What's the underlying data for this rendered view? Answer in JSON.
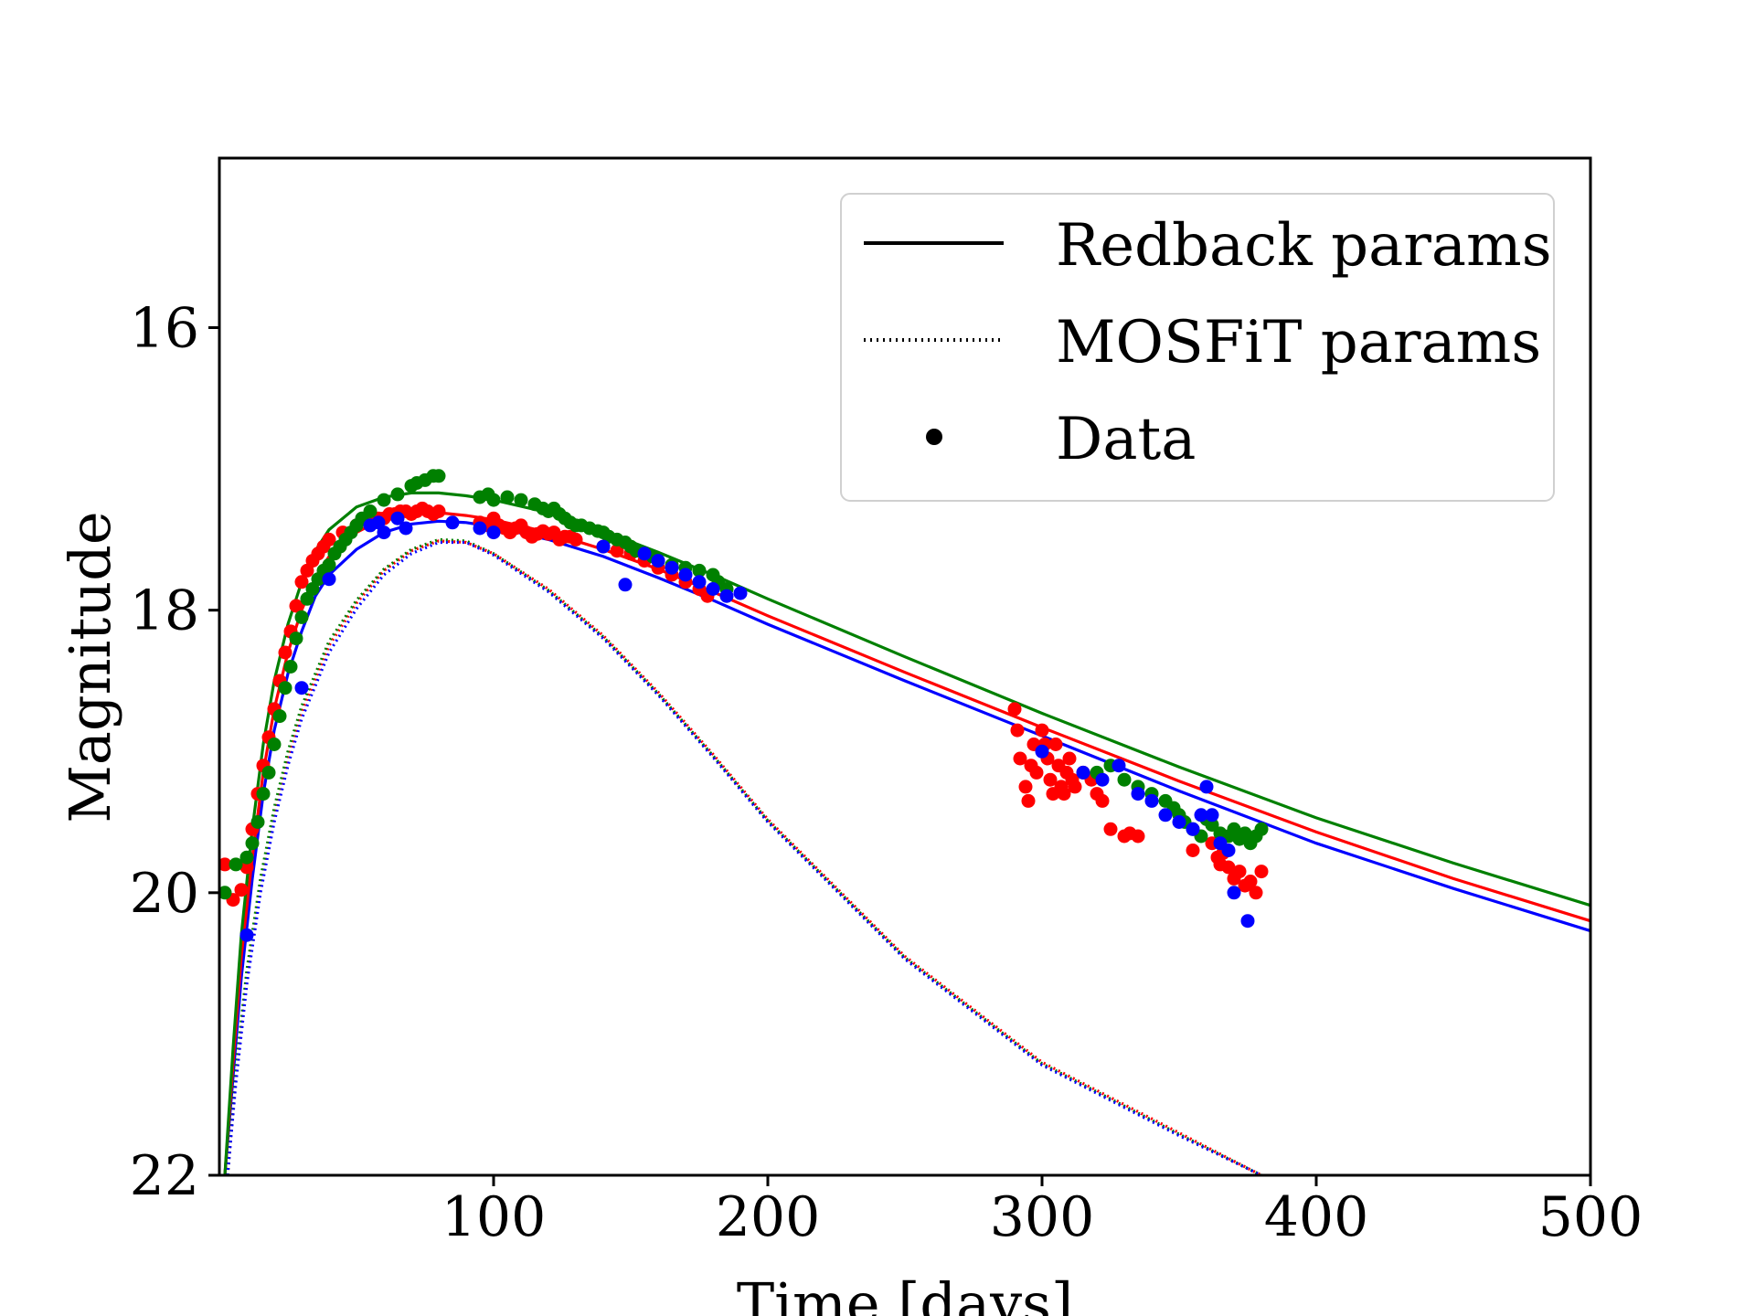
{
  "chart_data": {
    "type": "line",
    "title": "",
    "xlabel": "Time [days]",
    "ylabel": "Magnitude",
    "xlim": [
      0,
      500
    ],
    "ylim": [
      22,
      14.8
    ],
    "y_inverted": true,
    "grid": false,
    "legend_placement": "top-right",
    "xticks": [
      {
        "value": 100,
        "label": "100"
      },
      {
        "value": 200,
        "label": "200"
      },
      {
        "value": 300,
        "label": "300"
      },
      {
        "value": 400,
        "label": "400"
      },
      {
        "value": 500,
        "label": "500"
      }
    ],
    "yticks": [
      {
        "value": 16,
        "label": "16"
      },
      {
        "value": 18,
        "label": "18"
      },
      {
        "value": 20,
        "label": "20"
      },
      {
        "value": 22,
        "label": "22"
      }
    ],
    "legend": [
      {
        "label": "Redback params",
        "style": "solid"
      },
      {
        "label": "MOSFiT params",
        "style": "dotted"
      },
      {
        "label": "Data",
        "style": "marker"
      }
    ],
    "model_series": [
      {
        "color": "#0000ff",
        "style": "solid",
        "x": [
          2,
          5,
          8,
          12,
          16,
          20,
          25,
          30,
          35,
          40,
          50,
          60,
          70,
          80,
          90,
          100,
          120,
          140,
          160,
          180,
          200,
          250,
          300,
          350,
          400,
          450,
          500
        ],
        "y": [
          22,
          21.3,
          20.6,
          19.9,
          19.3,
          18.85,
          18.45,
          18.15,
          17.9,
          17.75,
          17.57,
          17.45,
          17.39,
          17.37,
          17.38,
          17.41,
          17.5,
          17.62,
          17.77,
          17.93,
          18.1,
          18.5,
          18.89,
          19.28,
          19.65,
          19.97,
          20.27
        ]
      },
      {
        "color": "#ff0000",
        "style": "solid",
        "x": [
          2,
          5,
          8,
          12,
          16,
          20,
          25,
          30,
          35,
          40,
          50,
          60,
          70,
          80,
          90,
          100,
          120,
          140,
          160,
          180,
          200,
          250,
          300,
          350,
          400,
          450,
          500
        ],
        "y": [
          22,
          21.2,
          20.45,
          19.75,
          19.15,
          18.7,
          18.3,
          18.0,
          17.77,
          17.62,
          17.45,
          17.35,
          17.31,
          17.31,
          17.33,
          17.36,
          17.45,
          17.57,
          17.71,
          17.87,
          18.04,
          18.44,
          18.83,
          19.21,
          19.57,
          19.9,
          20.2
        ]
      },
      {
        "color": "#008000",
        "style": "solid",
        "x": [
          2,
          5,
          8,
          12,
          16,
          20,
          25,
          30,
          35,
          40,
          50,
          60,
          70,
          80,
          90,
          100,
          120,
          140,
          160,
          180,
          200,
          250,
          300,
          350,
          400,
          450,
          500
        ],
        "y": [
          22,
          21.1,
          20.3,
          19.55,
          18.95,
          18.5,
          18.1,
          17.8,
          17.58,
          17.43,
          17.27,
          17.2,
          17.17,
          17.17,
          17.19,
          17.22,
          17.31,
          17.44,
          17.59,
          17.75,
          17.92,
          18.33,
          18.73,
          19.11,
          19.47,
          19.79,
          20.09
        ]
      },
      {
        "color": "#ff0000",
        "style": "dotted",
        "x": [
          3,
          6,
          10,
          15,
          20,
          25,
          30,
          40,
          50,
          60,
          70,
          80,
          90,
          100,
          120,
          140,
          160,
          180,
          200,
          250,
          300,
          350,
          380
        ],
        "y": [
          22,
          21.3,
          20.6,
          19.95,
          19.45,
          19.05,
          18.72,
          18.25,
          17.95,
          17.72,
          17.58,
          17.51,
          17.52,
          17.6,
          17.85,
          18.18,
          18.58,
          19.02,
          19.48,
          20.45,
          21.2,
          21.7,
          22.0
        ]
      },
      {
        "color": "#008000",
        "style": "dotted",
        "x": [
          3,
          6,
          10,
          15,
          20,
          25,
          30,
          40,
          50,
          60,
          70,
          80,
          90,
          100,
          120,
          140,
          160,
          180,
          200,
          250,
          300,
          350,
          380
        ],
        "y": [
          22,
          21.25,
          20.55,
          19.9,
          19.4,
          19.0,
          18.68,
          18.22,
          17.93,
          17.71,
          17.57,
          17.5,
          17.51,
          17.6,
          17.86,
          18.19,
          18.59,
          19.03,
          19.49,
          20.46,
          21.21,
          21.71,
          22.0
        ]
      },
      {
        "color": "#0000ff",
        "style": "dotted",
        "x": [
          3,
          6,
          10,
          15,
          20,
          25,
          30,
          40,
          50,
          60,
          70,
          80,
          90,
          100,
          120,
          140,
          160,
          180,
          200,
          250,
          300,
          350,
          380
        ],
        "y": [
          22,
          21.35,
          20.65,
          20.0,
          19.5,
          19.1,
          18.77,
          18.3,
          17.99,
          17.75,
          17.6,
          17.52,
          17.52,
          17.61,
          17.87,
          18.2,
          18.6,
          19.04,
          19.5,
          20.47,
          21.22,
          21.72,
          22.0
        ]
      }
    ],
    "data_points": [
      {
        "name": "red",
        "color": "#ff0000",
        "x": [
          2,
          5,
          8,
          10,
          12,
          14,
          16,
          18,
          20,
          22,
          24,
          26,
          28,
          30,
          32,
          34,
          36,
          38,
          40,
          45,
          50,
          55,
          58,
          60,
          62,
          64,
          66,
          68,
          70,
          72,
          74,
          76,
          78,
          80,
          95,
          98,
          100,
          102,
          104,
          106,
          108,
          110,
          112,
          114,
          116,
          118,
          120,
          122,
          124,
          126,
          128,
          130,
          140,
          145,
          150,
          155,
          160,
          165,
          170,
          175,
          178,
          290,
          291,
          292,
          294,
          295,
          296,
          297,
          298,
          300,
          301,
          302,
          303,
          304,
          305,
          306,
          307,
          308,
          309,
          310,
          311,
          312,
          315,
          318,
          320,
          322,
          325,
          330,
          332,
          335,
          355,
          362,
          364,
          365,
          366,
          368,
          370,
          372,
          374,
          376,
          378,
          380
        ],
        "y": [
          19.8,
          20.05,
          19.98,
          19.82,
          19.55,
          19.3,
          19.1,
          18.9,
          18.7,
          18.5,
          18.3,
          18.15,
          17.97,
          17.8,
          17.72,
          17.65,
          17.6,
          17.55,
          17.5,
          17.45,
          17.4,
          17.38,
          17.35,
          17.35,
          17.32,
          17.32,
          17.3,
          17.3,
          17.32,
          17.3,
          17.28,
          17.3,
          17.32,
          17.3,
          17.38,
          17.4,
          17.35,
          17.4,
          17.42,
          17.45,
          17.42,
          17.4,
          17.45,
          17.48,
          17.46,
          17.44,
          17.46,
          17.45,
          17.5,
          17.48,
          17.48,
          17.5,
          17.55,
          17.58,
          17.6,
          17.65,
          17.7,
          17.75,
          17.8,
          17.85,
          17.9,
          18.7,
          18.85,
          19.05,
          19.25,
          19.35,
          19.1,
          18.95,
          19.15,
          18.85,
          18.95,
          19.05,
          19.2,
          19.3,
          18.95,
          19.1,
          19.25,
          19.3,
          19.15,
          19.05,
          19.2,
          19.25,
          19.15,
          19.2,
          19.3,
          19.35,
          19.55,
          19.6,
          19.58,
          19.6,
          19.7,
          19.65,
          19.75,
          19.8,
          19.72,
          19.82,
          19.9,
          19.85,
          19.95,
          19.92,
          20.0,
          19.85
        ]
      },
      {
        "name": "green",
        "color": "#008000",
        "x": [
          2,
          6,
          10,
          12,
          14,
          16,
          18,
          20,
          22,
          24,
          26,
          28,
          30,
          32,
          34,
          36,
          38,
          40,
          42,
          44,
          46,
          48,
          50,
          52,
          55,
          60,
          65,
          70,
          72,
          75,
          78,
          80,
          95,
          98,
          100,
          105,
          110,
          115,
          118,
          120,
          122,
          124,
          126,
          128,
          130,
          132,
          135,
          138,
          140,
          142,
          145,
          148,
          150,
          152,
          155,
          158,
          160,
          165,
          170,
          175,
          180,
          182,
          185,
          320,
          325,
          330,
          335,
          340,
          345,
          348,
          350,
          352,
          355,
          358,
          360,
          362,
          365,
          368,
          370,
          372,
          374,
          376,
          378,
          380
        ],
        "y": [
          20.0,
          19.8,
          19.75,
          19.65,
          19.5,
          19.3,
          19.15,
          18.95,
          18.75,
          18.55,
          18.4,
          18.2,
          18.05,
          17.92,
          17.85,
          17.78,
          17.72,
          17.68,
          17.6,
          17.55,
          17.5,
          17.45,
          17.4,
          17.35,
          17.3,
          17.22,
          17.18,
          17.12,
          17.1,
          17.08,
          17.05,
          17.05,
          17.2,
          17.18,
          17.22,
          17.2,
          17.22,
          17.25,
          17.28,
          17.3,
          17.28,
          17.32,
          17.35,
          17.38,
          17.4,
          17.4,
          17.42,
          17.44,
          17.45,
          17.48,
          17.5,
          17.52,
          17.55,
          17.58,
          17.6,
          17.62,
          17.65,
          17.68,
          17.7,
          17.72,
          17.75,
          17.8,
          17.85,
          19.15,
          19.1,
          19.2,
          19.25,
          19.3,
          19.35,
          19.4,
          19.45,
          19.5,
          19.55,
          19.6,
          19.48,
          19.52,
          19.58,
          19.6,
          19.55,
          19.62,
          19.58,
          19.65,
          19.6,
          19.55
        ]
      },
      {
        "name": "blue",
        "color": "#0000ff",
        "x": [
          10,
          30,
          40,
          55,
          58,
          60,
          65,
          68,
          85,
          95,
          100,
          140,
          148,
          155,
          160,
          165,
          170,
          175,
          180,
          185,
          190,
          300,
          315,
          322,
          328,
          335,
          340,
          345,
          350,
          355,
          358,
          360,
          362,
          365,
          368,
          370,
          375
        ],
        "y": [
          20.3,
          18.55,
          17.78,
          17.4,
          17.38,
          17.45,
          17.35,
          17.42,
          17.38,
          17.42,
          17.45,
          17.55,
          17.82,
          17.6,
          17.65,
          17.7,
          17.75,
          17.8,
          17.85,
          17.9,
          17.88,
          19.0,
          19.15,
          19.2,
          19.1,
          19.3,
          19.35,
          19.45,
          19.5,
          19.55,
          19.45,
          19.25,
          19.45,
          19.65,
          19.7,
          20.0,
          20.2
        ]
      }
    ]
  }
}
